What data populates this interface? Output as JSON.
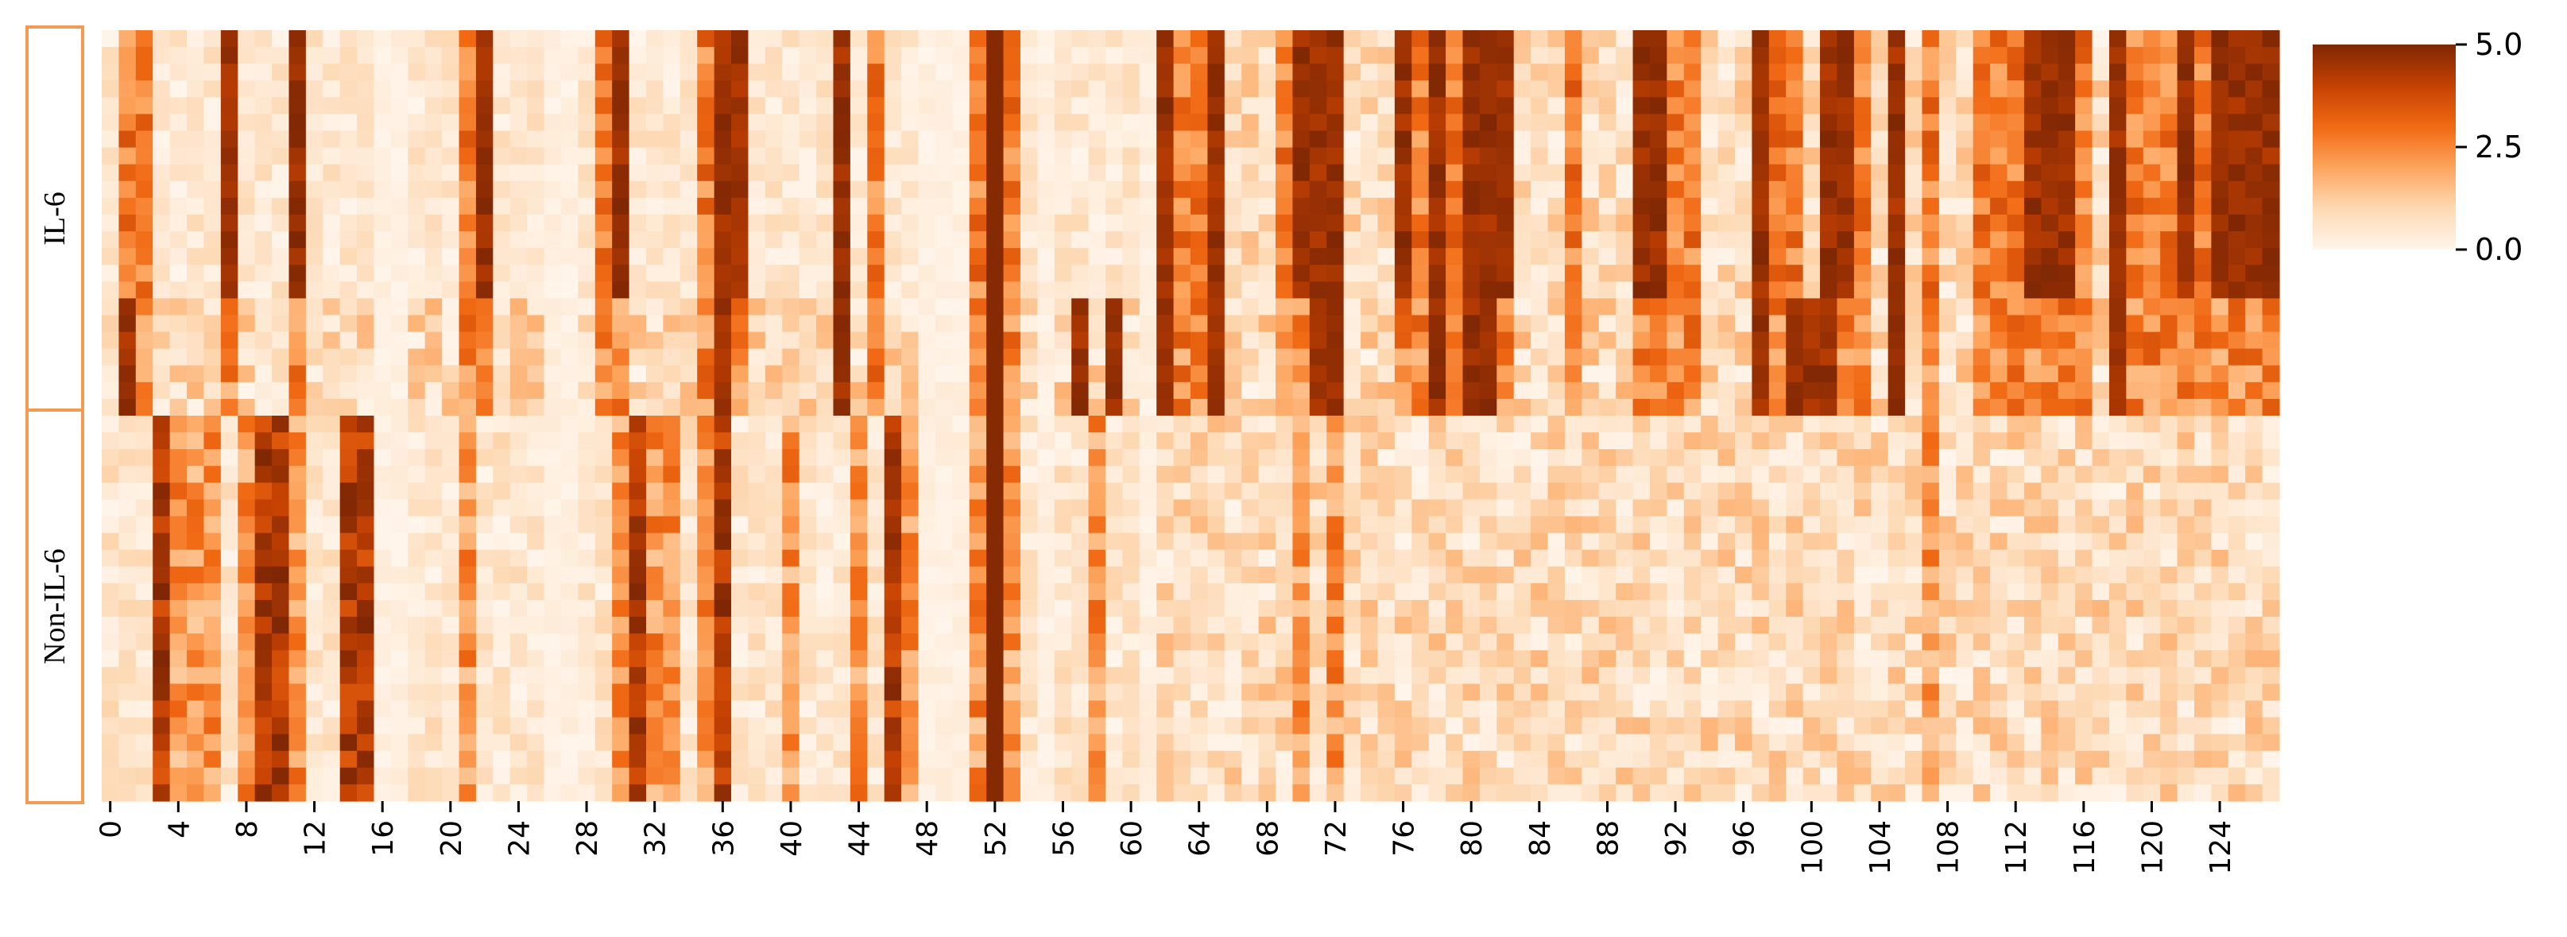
{
  "chart_data": {
    "type": "heatmap",
    "n_columns": 128,
    "x_tick_labels": [
      "0",
      "4",
      "8",
      "12",
      "16",
      "20",
      "24",
      "28",
      "32",
      "36",
      "40",
      "44",
      "48",
      "52",
      "56",
      "60",
      "64",
      "68",
      "72",
      "76",
      "80",
      "84",
      "88",
      "92",
      "96",
      "100",
      "104",
      "108",
      "112",
      "116",
      "120",
      "124"
    ],
    "x_tick_step": 4,
    "groups": [
      {
        "label": "IL-6",
        "n_rows": 23
      },
      {
        "label": "Non-IL-6",
        "n_rows": 23
      }
    ],
    "colorbar": {
      "min": 0.0,
      "max": 5.0,
      "ticks": [
        "5.0",
        "2.5",
        "0.0"
      ],
      "tick_values": [
        5.0,
        2.5,
        0.0
      ],
      "colormap": "Oranges",
      "stops": [
        "#fff5eb",
        "#fdd9b4",
        "#fda45d",
        "#f16913",
        "#c44103",
        "#7f2704"
      ]
    },
    "column_profiles": {
      "il6_top_dark": [
        7,
        11,
        22,
        30,
        36,
        37,
        43,
        52,
        62,
        65,
        70,
        71,
        72,
        76,
        78,
        80,
        81,
        82,
        90,
        91,
        97,
        101,
        102,
        105,
        113,
        114,
        115,
        118,
        122,
        124,
        125,
        126,
        127
      ],
      "il6_top_medium": [
        1,
        2,
        17,
        21,
        29,
        35,
        45,
        51,
        53,
        63,
        64,
        69,
        77,
        79,
        86,
        92,
        93,
        98,
        99,
        103,
        107,
        110,
        111,
        112,
        116,
        119,
        120,
        121,
        123
      ],
      "il6_bottom_dark": [
        1,
        36,
        43,
        52,
        57,
        59,
        62,
        65,
        71,
        72,
        78,
        80,
        81,
        97,
        99,
        100,
        101,
        105,
        118
      ],
      "nonil6_dark": [
        3,
        9,
        10,
        14,
        15,
        31,
        36,
        46,
        52
      ],
      "nonil6_medium": [
        4,
        5,
        6,
        8,
        11,
        16,
        21,
        30,
        32,
        33,
        35,
        40,
        44,
        47,
        51,
        53,
        58,
        70,
        72,
        107
      ],
      "near_zero": [
        16,
        17,
        26,
        27,
        48,
        49,
        50,
        55,
        61
      ]
    }
  }
}
